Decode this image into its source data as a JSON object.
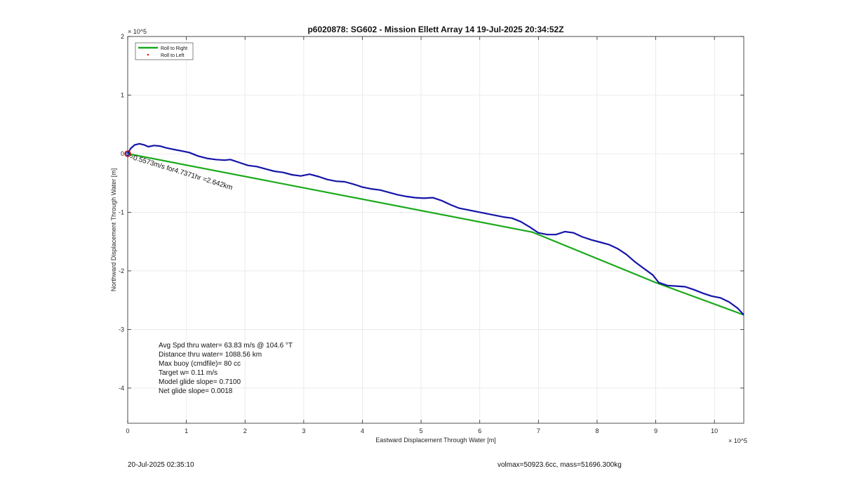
{
  "chart_data": {
    "type": "line",
    "title": "p6020878: SG602 - Mission Ellett Array 14 19-Jul-2025 20:34:52Z",
    "xlabel": "Eastward Displacement Through Water [m]",
    "ylabel": "Northward Displacement Through Water [m]",
    "x_exponent": "× 10^5",
    "y_exponent": "× 10^5",
    "xlim": [
      0,
      10.5
    ],
    "ylim": [
      -4.6,
      2.0
    ],
    "x_ticks": [
      0,
      1,
      2,
      3,
      4,
      5,
      6,
      7,
      8,
      9,
      10
    ],
    "x_tick_labels": [
      "0",
      "1",
      "2",
      "3",
      "4",
      "5",
      "6",
      "7",
      "8",
      "9",
      "10"
    ],
    "y_ticks": [
      2,
      1,
      0,
      -1,
      -2,
      -3,
      -4
    ],
    "y_tick_labels": [
      "2",
      "1",
      "0",
      "-1",
      "-2",
      "-3",
      "-4"
    ],
    "grid": true,
    "legend": {
      "position": "top-left",
      "entries": [
        {
          "label": "Roll to Right",
          "color": "#1aaa1a",
          "marker": "line"
        },
        {
          "label": "Roll to Left",
          "color": "#cc0000",
          "marker": "dot"
        }
      ]
    },
    "series": [
      {
        "name": "",
        "color": "#1414a8",
        "x": [
          0,
          0.05,
          0.12,
          0.2,
          0.28,
          0.35,
          0.45,
          0.55,
          0.65,
          0.75,
          0.85,
          0.95,
          1.05,
          1.2,
          1.35,
          1.5,
          1.65,
          1.75,
          1.9,
          2.05,
          2.2,
          2.35,
          2.5,
          2.65,
          2.8,
          2.95,
          3.1,
          3.25,
          3.4,
          3.55,
          3.7,
          3.85,
          4.0,
          4.15,
          4.3,
          4.45,
          4.6,
          4.75,
          4.9,
          5.05,
          5.2,
          5.35,
          5.5,
          5.65,
          5.8,
          5.95,
          6.1,
          6.25,
          6.4,
          6.55,
          6.7,
          6.85,
          7.0,
          7.15,
          7.3,
          7.45,
          7.6,
          7.75,
          7.9,
          8.05,
          8.2,
          8.35,
          8.5,
          8.65,
          8.8,
          8.95,
          9.05,
          9.2,
          9.35,
          9.5,
          9.65,
          9.8,
          9.95,
          10.1,
          10.25,
          10.4,
          10.5
        ],
        "y": [
          0,
          0.09,
          0.15,
          0.17,
          0.15,
          0.12,
          0.14,
          0.13,
          0.1,
          0.08,
          0.06,
          0.04,
          0.02,
          -0.04,
          -0.08,
          -0.1,
          -0.11,
          -0.1,
          -0.15,
          -0.2,
          -0.22,
          -0.26,
          -0.3,
          -0.32,
          -0.36,
          -0.38,
          -0.35,
          -0.39,
          -0.44,
          -0.47,
          -0.48,
          -0.52,
          -0.57,
          -0.6,
          -0.62,
          -0.66,
          -0.7,
          -0.73,
          -0.75,
          -0.76,
          -0.75,
          -0.8,
          -0.87,
          -0.93,
          -0.96,
          -0.99,
          -1.02,
          -1.05,
          -1.08,
          -1.1,
          -1.16,
          -1.25,
          -1.35,
          -1.38,
          -1.38,
          -1.33,
          -1.35,
          -1.42,
          -1.47,
          -1.51,
          -1.55,
          -1.62,
          -1.72,
          -1.85,
          -1.96,
          -2.07,
          -2.2,
          -2.25,
          -2.26,
          -2.27,
          -2.32,
          -2.38,
          -2.43,
          -2.46,
          -2.53,
          -2.64,
          -2.75
        ]
      },
      {
        "name": "",
        "color": "#1aaa1a",
        "x": [
          0,
          6.9,
          9.0,
          10.5
        ],
        "y": [
          0,
          -1.34,
          -2.2,
          -2.75
        ]
      }
    ],
    "annotation": "=0.5573m/s for4.7371hr =2.642km",
    "stats": [
      "Avg Spd thru water= 63.83 m/s @ 104.6 °T",
      "Distance thru water= 1088.56 km",
      "Max buoy (cmdfile)= 80 cc",
      "Target w= 0.11 m/s",
      "Model glide slope= 0.7100",
      "Net glide slope= 0.0018"
    ]
  },
  "footer": {
    "timestamp": "20-Jul-2025 02:35:10",
    "volmass": "volmax=50923.6cc, mass=51696.300kg"
  }
}
